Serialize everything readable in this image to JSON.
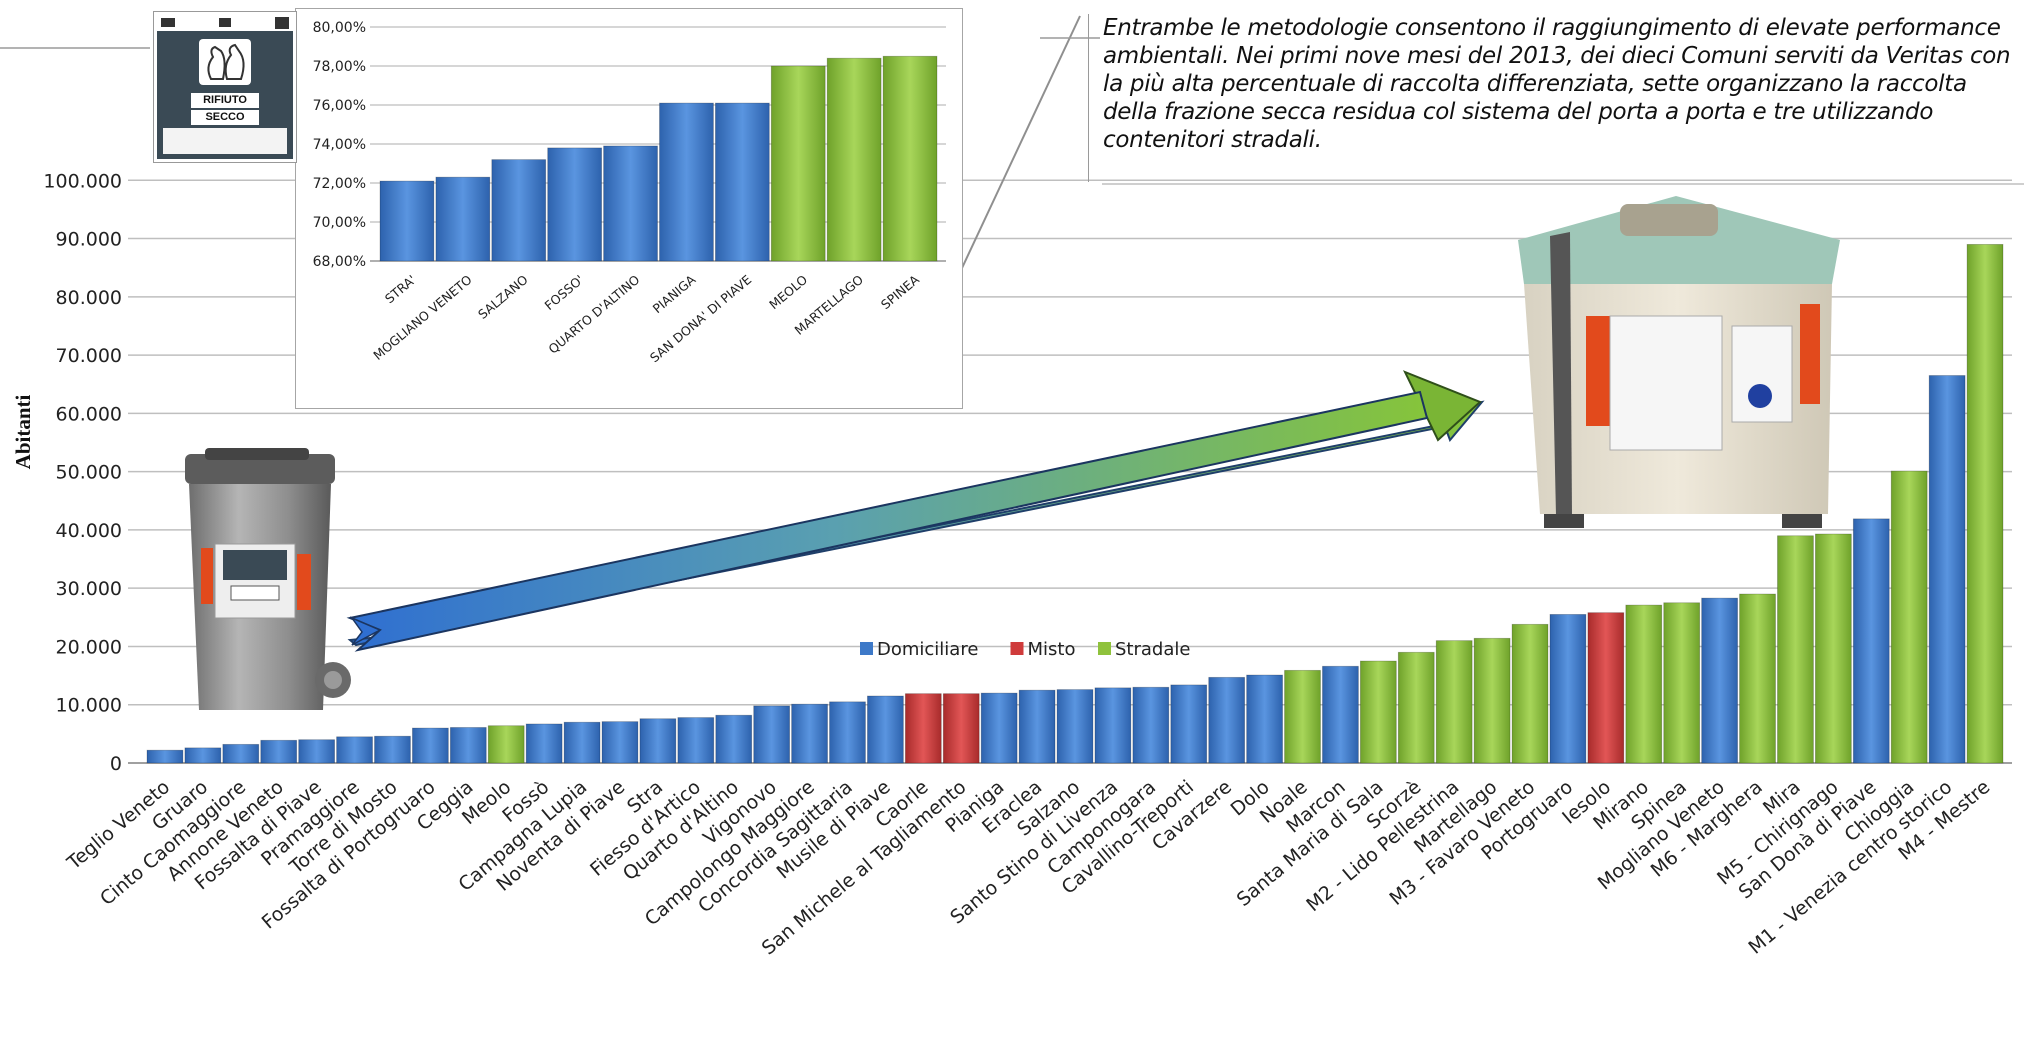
{
  "callout": {
    "text": "Entrambe le metodologie consentono il raggiungimento di elevate performance ambientali. Nei primi nove mesi del 2013, dei dieci Comuni serviti da Veritas con la più alta percentuale di raccolta differenziata, sette organizzano la raccolta della frazione secca residua col sistema del porta a porta  e tre utilizzando contenitori stradali."
  },
  "bin_label": {
    "line1": "RIFIUTO",
    "line2": "SECCO"
  },
  "colors": {
    "Domiciliare": "#3d79c8",
    "Misto": "#cf3b3b",
    "Stradale": "#8fc23c",
    "grid": "#bfbfbf",
    "arrow_start": "#2f6fd1",
    "arrow_end": "#86c43a"
  },
  "chart_data": [
    {
      "type": "bar",
      "title": "",
      "ylabel": "Abitanti",
      "xlabel": "",
      "ylim": [
        0,
        110000
      ],
      "y_ticks": [
        "0",
        "10.000",
        "20.000",
        "30.000",
        "40.000",
        "50.000",
        "60.000",
        "70.000",
        "80.000",
        "90.000",
        "100.000"
      ],
      "grid": true,
      "legend_position": "center",
      "legend": [
        "Domiciliare",
        "Misto",
        "Stradale"
      ],
      "categories": [
        "Teglio Veneto",
        "Gruaro",
        "Cinto Caomaggiore",
        "Annone Veneto",
        "Fossalta di Piave",
        "Pramaggiore",
        "Torre di Mosto",
        "Fossalta di Portogruaro",
        "Ceggia",
        "Meolo",
        "Fossò",
        "Campagna Lupia",
        "Noventa di Piave",
        "Stra",
        "Fiesso d'Artico",
        "Quarto d'Altino",
        "Vigonovo",
        "Campolongo Maggiore",
        "Concordia Sagittaria",
        "Musile di Piave",
        "Caorle",
        "San Michele al Tagliamento",
        "Pianiga",
        "Eraclea",
        "Salzano",
        "Santo Stino di Livenza",
        "Camponogara",
        "Cavallino-Treporti",
        "Cavarzere",
        "Dolo",
        "Noale",
        "Marcon",
        "Santa Maria di Sala",
        "Scorzè",
        "M2 - Lido Pellestrina",
        "Martellago",
        "M3 - Favaro Veneto",
        "Portogruaro",
        "Iesolo",
        "Mirano",
        "Spinea",
        "Mogliano Veneto",
        "M6 - Marghera",
        "Mira",
        "M5 - Chirignago",
        "San Donà di Piave",
        "Chioggia",
        "M1 - Venezia centro storico",
        "M4 - Mestre"
      ],
      "values": [
        2200,
        2600,
        3200,
        3900,
        4000,
        4500,
        4600,
        6000,
        6100,
        6400,
        6700,
        7000,
        7100,
        7600,
        7800,
        8200,
        9800,
        10100,
        10500,
        11500,
        11900,
        11900,
        12000,
        12500,
        12600,
        12900,
        13000,
        13400,
        14700,
        15100,
        15900,
        16600,
        17500,
        19000,
        21000,
        21400,
        23800,
        25500,
        25800,
        27100,
        27500,
        28300,
        29000,
        39000,
        39300,
        41900,
        50100,
        66500,
        89000
      ],
      "system": [
        "Domiciliare",
        "Domiciliare",
        "Domiciliare",
        "Domiciliare",
        "Domiciliare",
        "Domiciliare",
        "Domiciliare",
        "Domiciliare",
        "Domiciliare",
        "Stradale",
        "Domiciliare",
        "Domiciliare",
        "Domiciliare",
        "Domiciliare",
        "Domiciliare",
        "Domiciliare",
        "Domiciliare",
        "Domiciliare",
        "Domiciliare",
        "Domiciliare",
        "Misto",
        "Misto",
        "Domiciliare",
        "Domiciliare",
        "Domiciliare",
        "Domiciliare",
        "Domiciliare",
        "Domiciliare",
        "Domiciliare",
        "Domiciliare",
        "Stradale",
        "Domiciliare",
        "Stradale",
        "Stradale",
        "Stradale",
        "Stradale",
        "Stradale",
        "Domiciliare",
        "Misto",
        "Stradale",
        "Stradale",
        "Domiciliare",
        "Stradale",
        "Stradale",
        "Stradale",
        "Domiciliare",
        "Stradale",
        "Domiciliare",
        "Stradale"
      ]
    },
    {
      "type": "bar",
      "title": "",
      "ylim": [
        68,
        80
      ],
      "y_ticks": [
        "68,00%",
        "70,00%",
        "72,00%",
        "74,00%",
        "76,00%",
        "78,00%",
        "80,00%"
      ],
      "grid": true,
      "categories": [
        "STRA'",
        "MOGLIANO VENETO",
        "SALZANO",
        "FOSSO'",
        "QUARTO D'ALTINO",
        "PIANIGA",
        "SAN DONA' DI PIAVE",
        "MEOLO",
        "MARTELLAGO",
        "SPINEA"
      ],
      "values": [
        72.1,
        72.3,
        73.2,
        73.8,
        73.9,
        76.1,
        76.1,
        78.0,
        78.4,
        78.5
      ],
      "system": [
        "Domiciliare",
        "Domiciliare",
        "Domiciliare",
        "Domiciliare",
        "Domiciliare",
        "Domiciliare",
        "Domiciliare",
        "Stradale",
        "Stradale",
        "Stradale"
      ]
    }
  ]
}
